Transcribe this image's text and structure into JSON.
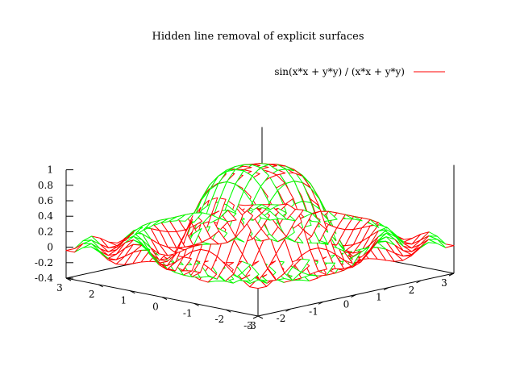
{
  "chart_data": {
    "type": "surface",
    "title": "Hidden line removal of explicit surfaces",
    "function": "sin(x*x + y*y) / (x*x + y*y)",
    "legend": {
      "label": "sin(x*x + y*y) / (x*x + y*y)",
      "placement": "top-right"
    },
    "x": {
      "range": [
        -3,
        3
      ],
      "ticks": [
        -3,
        -2,
        -1,
        0,
        1,
        2,
        3
      ],
      "samples": 24
    },
    "y": {
      "range": [
        -3,
        3
      ],
      "ticks": [
        -3,
        -2,
        -1,
        0,
        1,
        2,
        3
      ],
      "samples": 24
    },
    "z": {
      "range": [
        -0.4,
        1
      ],
      "ticks": [
        "1",
        "0.8",
        "0.6",
        "0.4",
        "0.2",
        "0",
        "-0.2",
        "-0.4"
      ]
    },
    "hidden3d": true
  },
  "colors": {
    "surface_top": "#ff0000",
    "surface_bottom": "#00ff00",
    "axes": "#000000",
    "background": "#ffffff"
  }
}
